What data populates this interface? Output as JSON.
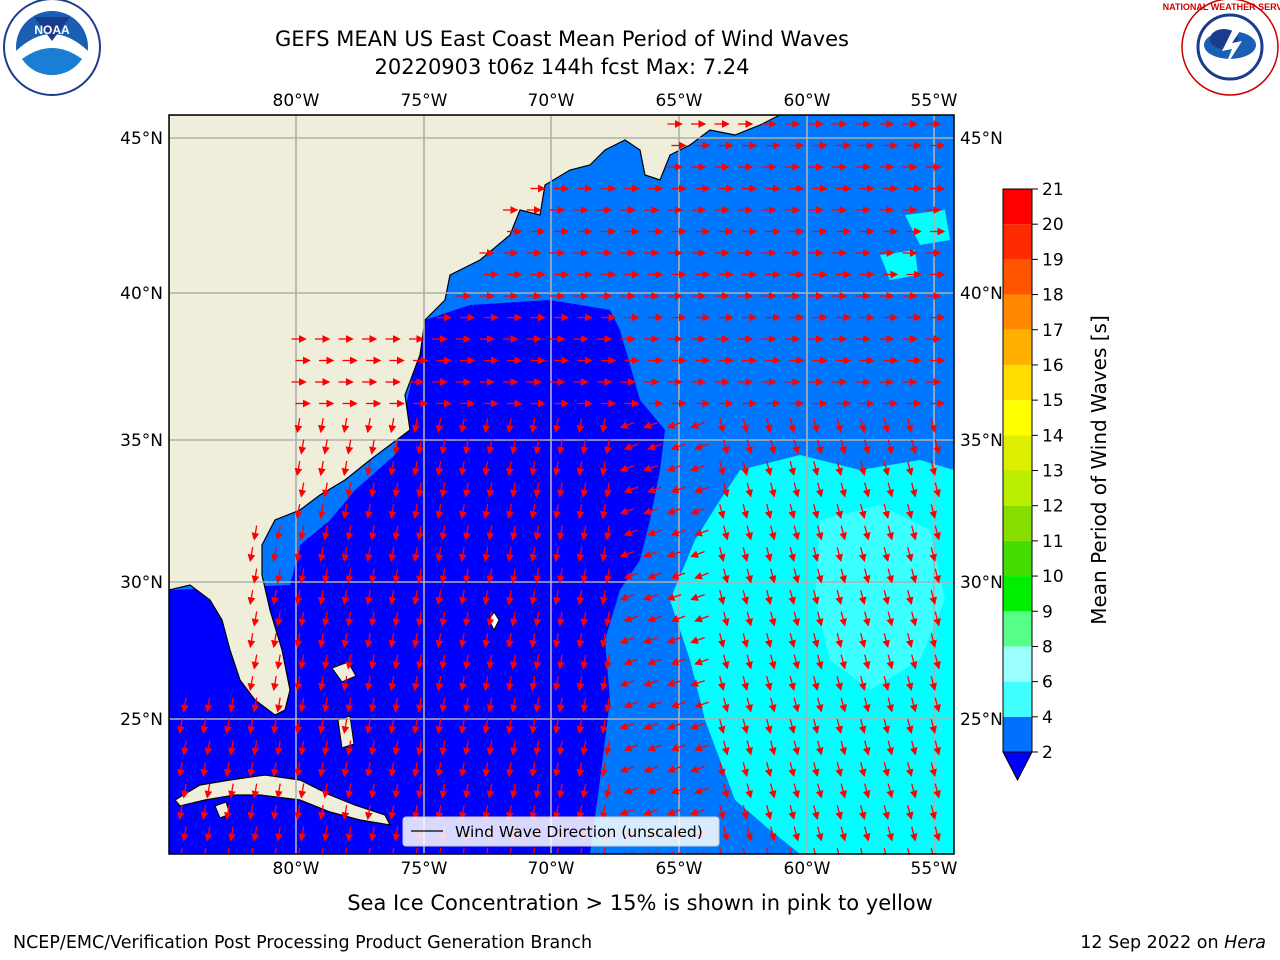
{
  "header": {
    "title_line1": "GEFS MEAN US East Coast Mean Period of Wind Waves",
    "title_line2": "20220903 t06z 144h fcst   Max: 7.24"
  },
  "logos": {
    "left": {
      "name": "noaa-logo",
      "text": "NOAA"
    },
    "right": {
      "name": "nws-logo",
      "text": "NATIONAL WEATHER SERVICE"
    }
  },
  "map": {
    "lon_labels": [
      "80°W",
      "75°W",
      "70°W",
      "65°W",
      "60°W",
      "55°W"
    ],
    "lat_labels": [
      "45°N",
      "40°N",
      "35°N",
      "30°N",
      "25°N"
    ],
    "legend_label": "Wind Wave Direction (unscaled)",
    "colors": {
      "land": "#efeedb",
      "deep": "#0000ff",
      "mid": "#0077ff",
      "light": "#00ffff",
      "pale": "#55ffff",
      "grid": "#b0b0b0",
      "arrow": "#ff0000"
    }
  },
  "colorbar": {
    "title": "Mean Period of Wind Waves [s]",
    "ticks": [
      "2",
      "4",
      "6",
      "8",
      "9",
      "10",
      "11",
      "12",
      "13",
      "14",
      "15",
      "16",
      "17",
      "18",
      "19",
      "20",
      "21"
    ],
    "colors": [
      "#0070ff",
      "#00ffff",
      "#40ffff",
      "#9cffff",
      "#55ff88",
      "#00ee00",
      "#44dd00",
      "#88dd00",
      "#bbee00",
      "#ddee00",
      "#ffff00",
      "#ffdd00",
      "#ffb000",
      "#ff8800",
      "#ff5500",
      "#ff2a00",
      "#ff0000"
    ],
    "extend_color": "#0000ff"
  },
  "footer": {
    "subcaption": "Sea Ice Concentration > 15% is shown in pink to yellow",
    "left": "NCEP/EMC/Verification Post Processing Product Generation Branch",
    "right_date": "12 Sep 2022 on ",
    "right_host": "Hera"
  }
}
